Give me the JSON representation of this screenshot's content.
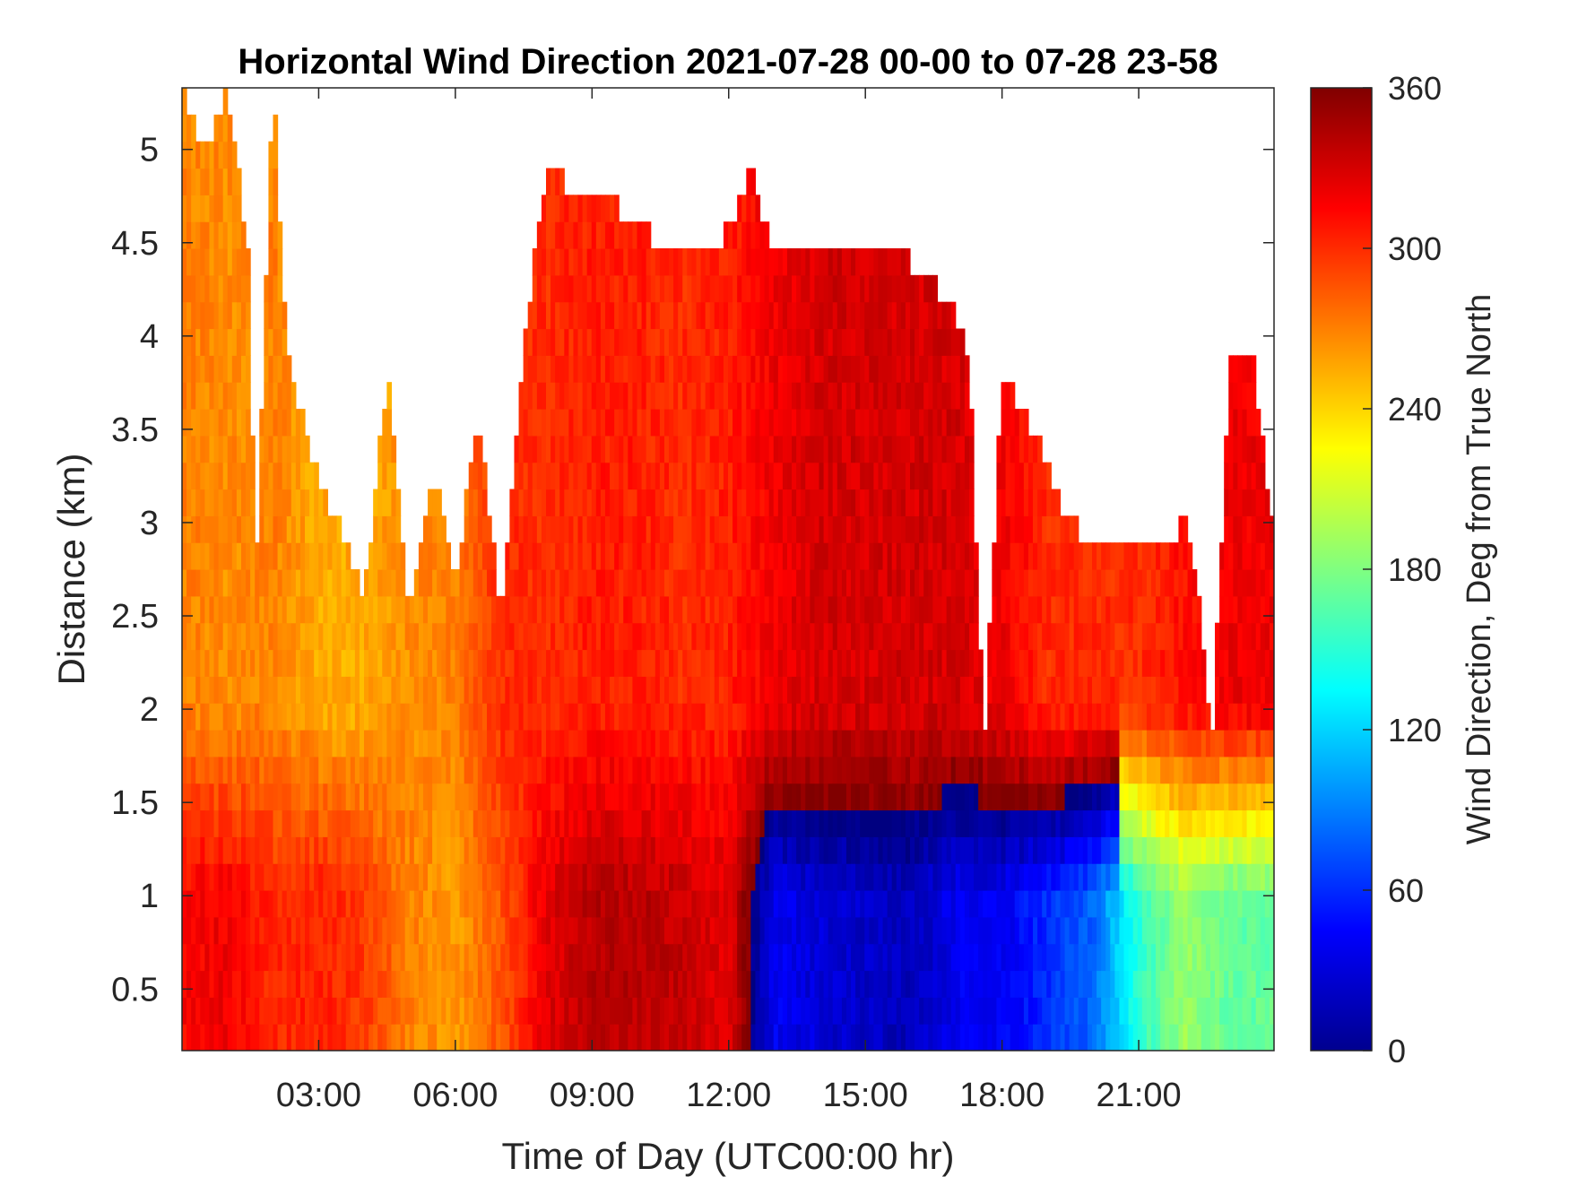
{
  "chart_data": {
    "type": "heatmap",
    "title": "Horizontal Wind Direction 2021-07-28 00-00 to 07-28 23-58",
    "xlabel": "Time of Day (UTC00:00 hr)",
    "ylabel": "Distance (km)",
    "colorbar_label": "Wind Direction, Deg from True North",
    "colormap": "jet",
    "xlim_hours": [
      0,
      23.97
    ],
    "ylim_km": [
      0.17,
      5.33
    ],
    "clim_deg": [
      0,
      360
    ],
    "x_ticks": [
      {
        "value": 3,
        "label": "03:00"
      },
      {
        "value": 6,
        "label": "06:00"
      },
      {
        "value": 9,
        "label": "09:00"
      },
      {
        "value": 12,
        "label": "12:00"
      },
      {
        "value": 15,
        "label": "15:00"
      },
      {
        "value": 18,
        "label": "18:00"
      },
      {
        "value": 21,
        "label": "21:00"
      }
    ],
    "y_ticks": [
      {
        "value": 0.5,
        "label": "0.5"
      },
      {
        "value": 1,
        "label": "1"
      },
      {
        "value": 1.5,
        "label": "1.5"
      },
      {
        "value": 2,
        "label": "2"
      },
      {
        "value": 2.5,
        "label": "2.5"
      },
      {
        "value": 3,
        "label": "3"
      },
      {
        "value": 3.5,
        "label": "3.5"
      },
      {
        "value": 4,
        "label": "4"
      },
      {
        "value": 4.5,
        "label": "4.5"
      },
      {
        "value": 5,
        "label": "5"
      }
    ],
    "colorbar_ticks": [
      {
        "value": 0,
        "label": "0"
      },
      {
        "value": 60,
        "label": "60"
      },
      {
        "value": 120,
        "label": "120"
      },
      {
        "value": 180,
        "label": "180"
      },
      {
        "value": 240,
        "label": "240"
      },
      {
        "value": 300,
        "label": "300"
      },
      {
        "value": 360,
        "label": "360"
      }
    ],
    "data_top_km": {
      "hours": [
        0,
        0.5,
        1.0,
        1.5,
        1.6,
        2.0,
        2.3,
        2.6,
        3.0,
        3.5,
        4.0,
        4.5,
        5.0,
        5.5,
        6.0,
        6.5,
        7.0,
        7.5,
        8.0,
        8.5,
        9.0,
        9.5,
        10.0,
        10.5,
        11.0,
        11.5,
        12.0,
        12.5,
        13.0,
        13.5,
        14.0,
        14.5,
        15.0,
        15.5,
        16.0,
        16.5,
        17.0,
        17.3,
        17.6,
        18.0,
        18.5,
        19.0,
        19.5,
        20.0,
        20.5,
        21.0,
        21.5,
        22.0,
        22.3,
        22.6,
        23.0,
        23.5,
        23.97
      ],
      "top_km": [
        5.33,
        5.0,
        5.33,
        4.4,
        2.6,
        5.33,
        4.0,
        3.6,
        3.2,
        3.0,
        2.6,
        3.8,
        2.5,
        3.3,
        2.7,
        3.6,
        2.5,
        4.0,
        4.9,
        4.8,
        4.7,
        4.7,
        4.6,
        4.5,
        4.4,
        4.4,
        4.6,
        4.9,
        4.4,
        4.4,
        4.5,
        4.5,
        4.5,
        4.4,
        4.4,
        4.3,
        4.1,
        3.8,
        1.8,
        3.8,
        3.6,
        3.3,
        3.0,
        2.9,
        2.9,
        2.9,
        2.9,
        3.0,
        2.6,
        1.8,
        3.9,
        3.9,
        2.9
      ]
    },
    "direction_deg_by_time": {
      "hours": [
        0,
        1,
        2,
        3,
        4,
        5,
        6,
        7,
        8,
        9,
        10,
        11,
        12,
        13,
        14,
        15,
        16,
        17,
        18,
        19,
        20,
        21,
        22,
        23
      ],
      "low_level_below_1_5km": [
        315,
        320,
        300,
        305,
        295,
        270,
        260,
        285,
        325,
        340,
        340,
        335,
        325,
        40,
        30,
        25,
        20,
        40,
        40,
        60,
        80,
        150,
        190,
        170
      ],
      "upper_level_above_1_5km": [
        270,
        265,
        270,
        255,
        255,
        265,
        270,
        300,
        300,
        305,
        305,
        300,
        305,
        320,
        330,
        330,
        330,
        330,
        320,
        300,
        300,
        300,
        310,
        320
      ]
    }
  }
}
